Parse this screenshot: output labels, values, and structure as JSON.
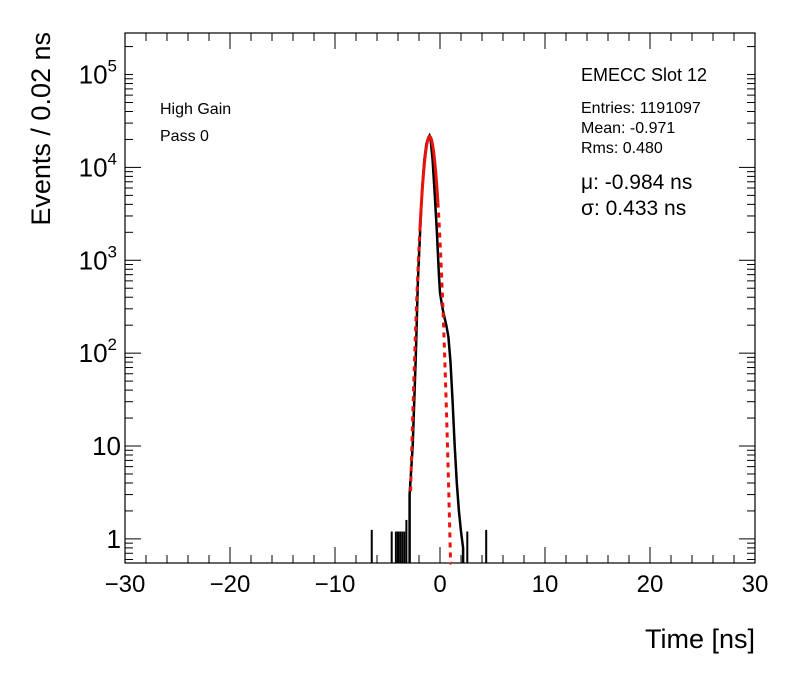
{
  "chart_data": {
    "type": "histogram",
    "xlabel": "Time [ns]",
    "ylabel": "Events / 0.02 ns",
    "xlim": [
      -30,
      30
    ],
    "ylim": [
      0.55,
      280000
    ],
    "yscale": "log",
    "grid": false,
    "x_ticks": [
      {
        "value": -30,
        "label": "−30"
      },
      {
        "value": -20,
        "label": "−20"
      },
      {
        "value": -10,
        "label": "−10"
      },
      {
        "value": 0,
        "label": "0"
      },
      {
        "value": 10,
        "label": "10"
      },
      {
        "value": 20,
        "label": "20"
      },
      {
        "value": 30,
        "label": "30"
      }
    ],
    "y_ticks": [
      {
        "value": 1,
        "label": "1"
      },
      {
        "value": 10,
        "label": "10"
      },
      {
        "value": 100,
        "base": "10",
        "exp": "2"
      },
      {
        "value": 1000,
        "base": "10",
        "exp": "3"
      },
      {
        "value": 10000,
        "base": "10",
        "exp": "4"
      },
      {
        "value": 100000,
        "base": "10",
        "exp": "5"
      }
    ],
    "annotations": {
      "gain": "High Gain",
      "pass": "Pass 0",
      "title": "EMECC Slot 12",
      "entries": "Entries: 1191097",
      "mean": "Mean: -0.971",
      "rms": "Rms: 0.480",
      "mu": "μ: -0.984 ns",
      "sigma": "σ: 0.433 ns"
    },
    "series": [
      {
        "type": "histogram",
        "color": "#000000",
        "x": [
          -2.9,
          -2.6,
          -2.3,
          -2.1,
          -1.9,
          -1.7,
          -1.5,
          -1.3,
          -1.1,
          -1.0,
          -0.9,
          -0.7,
          -0.5,
          -0.3,
          -0.1,
          0.0,
          0.2,
          0.4,
          0.6,
          0.8,
          1.0,
          1.2,
          1.4,
          1.6,
          1.8,
          2.0,
          2.2
        ],
        "y": [
          3,
          10,
          100,
          600,
          2000,
          6000,
          12000,
          18000,
          21000,
          22000,
          20000,
          12000,
          5000,
          2000,
          700,
          450,
          320,
          250,
          200,
          150,
          80,
          30,
          10,
          4,
          2,
          1.2,
          0.8
        ]
      },
      {
        "type": "isolated-entries",
        "color": "#000000",
        "x": [
          -6.5,
          -4.6,
          -4.2,
          -4.0,
          -3.8,
          -3.6,
          -3.4,
          -3.2,
          2.6,
          4.4
        ],
        "y": [
          1.25,
          1.2,
          1.2,
          1.2,
          1.2,
          1.2,
          1.2,
          1.6,
          1.2,
          1.25
        ]
      },
      {
        "type": "gaussian-fit",
        "color": "#e8140c",
        "mu": -0.984,
        "sigma": 0.433,
        "amplitude": 21500,
        "fit_range": [
          -1.9,
          -0.2
        ],
        "draw_range": [
          -2.8,
          1.1
        ]
      }
    ]
  }
}
